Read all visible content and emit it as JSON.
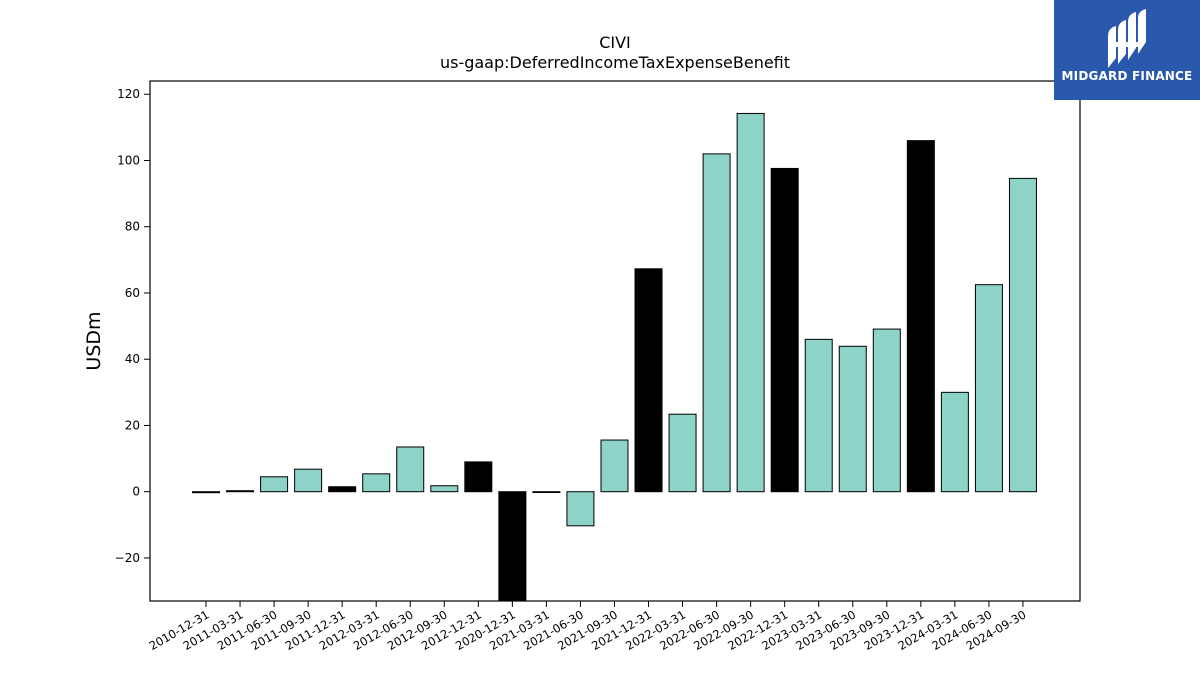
{
  "chart_data": {
    "type": "bar",
    "title": "CIVI",
    "subtitle": "us-gaap:DeferredIncomeTaxExpenseBenefit",
    "xlabel": "",
    "ylabel": "USDm",
    "ylim": [
      -33,
      124
    ],
    "yticks": [
      -20,
      0,
      20,
      40,
      60,
      80,
      100,
      120
    ],
    "ytick_labels": [
      "−20",
      "0",
      "20",
      "40",
      "60",
      "80",
      "100",
      "120"
    ],
    "grid": false,
    "colors": {
      "quarter": "#8dd3c7",
      "year_end": "#000000",
      "edge": "#000000"
    },
    "categories": [
      "2010-12-31",
      "2011-03-31",
      "2011-06-30",
      "2011-09-30",
      "2011-12-31",
      "2012-03-31",
      "2012-06-30",
      "2012-09-30",
      "2012-12-31",
      "2020-12-31",
      "2021-03-31",
      "2021-06-30",
      "2021-09-30",
      "2021-12-31",
      "2022-03-31",
      "2022-06-30",
      "2022-09-30",
      "2022-12-31",
      "2023-03-31",
      "2023-06-30",
      "2023-09-30",
      "2023-12-31",
      "2024-03-31",
      "2024-06-30",
      "2024-09-30"
    ],
    "values": [
      -0.3,
      0.3,
      4.5,
      6.8,
      1.5,
      5.4,
      13.5,
      1.8,
      9.0,
      -34,
      -0.2,
      -10.3,
      15.6,
      67.3,
      23.4,
      102.0,
      114.2,
      97.6,
      46.0,
      43.9,
      49.1,
      106.0,
      30.0,
      62.5,
      94.6
    ],
    "year_end": [
      true,
      false,
      false,
      false,
      true,
      false,
      false,
      false,
      true,
      true,
      false,
      false,
      false,
      true,
      false,
      false,
      false,
      true,
      false,
      false,
      false,
      true,
      false,
      false,
      false
    ]
  },
  "logo": {
    "text": "MIDGARD FINANCE",
    "icon": "midgard-logo-icon"
  }
}
